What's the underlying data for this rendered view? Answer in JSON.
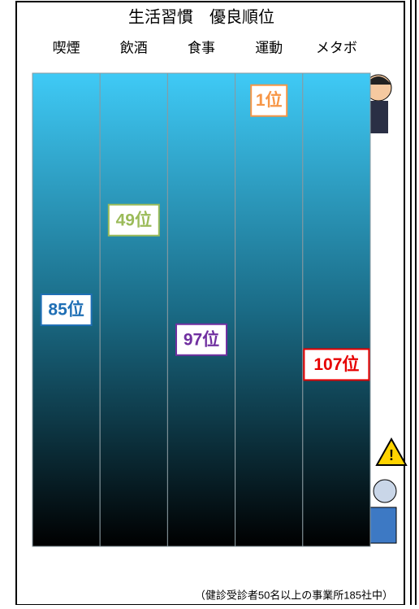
{
  "chart_data": {
    "type": "rank",
    "title": "生活習慣　優良順位",
    "categories": [
      "喫煙",
      "飲酒",
      "食事",
      "運動",
      "メタボ"
    ],
    "values": [
      85,
      49,
      97,
      1,
      107
    ],
    "value_labels": [
      "85位",
      "49位",
      "97位",
      "1位",
      "107位"
    ],
    "colors": [
      "#1f6fb5",
      "#9bbb59",
      "#7030a0",
      "#f79646",
      "#e60000"
    ],
    "ylim": [
      -10,
      180
    ],
    "y_inverted": true,
    "note": "（健診受診者50名以上の事業所185社中）"
  }
}
